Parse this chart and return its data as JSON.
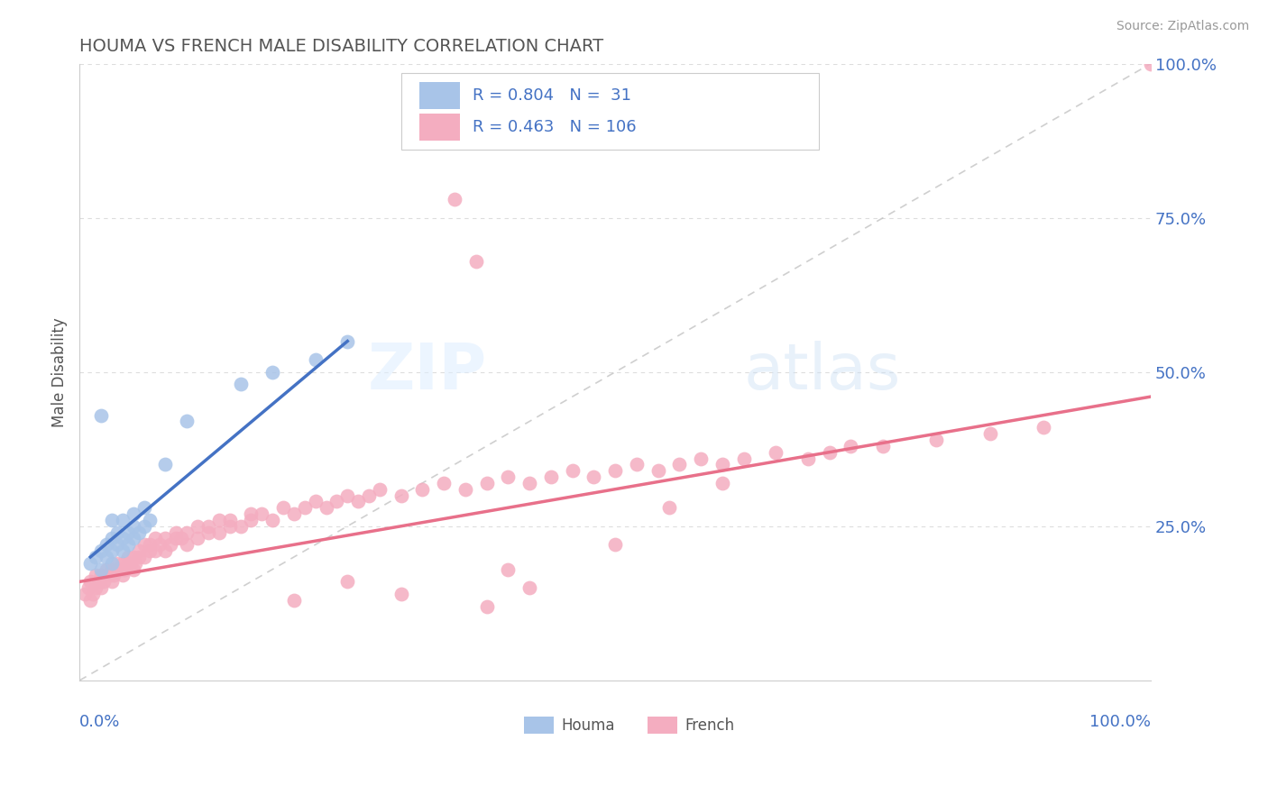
{
  "title": "HOUMA VS FRENCH MALE DISABILITY CORRELATION CHART",
  "source_text": "Source: ZipAtlas.com",
  "ylabel": "Male Disability",
  "houma_R": 0.804,
  "houma_N": 31,
  "french_R": 0.463,
  "french_N": 106,
  "houma_color": "#a8c4e8",
  "french_color": "#f4adc0",
  "houma_line_color": "#4472c4",
  "french_line_color": "#e8708a",
  "diag_line_color": "#bbbbbb",
  "legend_text_color": "#4472c4",
  "title_color": "#555555",
  "axis_label_color": "#4472c4",
  "background_color": "#ffffff",
  "grid_color": "#dddddd",
  "houma_scatter": {
    "x": [
      0.01,
      0.015,
      0.02,
      0.02,
      0.025,
      0.025,
      0.03,
      0.03,
      0.03,
      0.035,
      0.035,
      0.04,
      0.04,
      0.045,
      0.045,
      0.05,
      0.05,
      0.055,
      0.06,
      0.065,
      0.02,
      0.03,
      0.04,
      0.05,
      0.06,
      0.08,
      0.1,
      0.15,
      0.18,
      0.22,
      0.25
    ],
    "y": [
      0.19,
      0.2,
      0.18,
      0.21,
      0.2,
      0.22,
      0.19,
      0.21,
      0.23,
      0.22,
      0.24,
      0.21,
      0.23,
      0.22,
      0.24,
      0.23,
      0.25,
      0.24,
      0.25,
      0.26,
      0.43,
      0.26,
      0.26,
      0.27,
      0.28,
      0.35,
      0.42,
      0.48,
      0.5,
      0.52,
      0.55
    ]
  },
  "french_scatter": {
    "x": [
      0.005,
      0.008,
      0.01,
      0.01,
      0.012,
      0.015,
      0.015,
      0.018,
      0.02,
      0.02,
      0.022,
      0.025,
      0.025,
      0.028,
      0.03,
      0.03,
      0.032,
      0.035,
      0.035,
      0.038,
      0.04,
      0.04,
      0.042,
      0.045,
      0.045,
      0.048,
      0.05,
      0.05,
      0.052,
      0.055,
      0.055,
      0.06,
      0.06,
      0.065,
      0.065,
      0.07,
      0.07,
      0.075,
      0.08,
      0.08,
      0.085,
      0.09,
      0.09,
      0.095,
      0.1,
      0.1,
      0.11,
      0.11,
      0.12,
      0.12,
      0.13,
      0.13,
      0.14,
      0.14,
      0.15,
      0.16,
      0.16,
      0.17,
      0.18,
      0.19,
      0.2,
      0.21,
      0.22,
      0.23,
      0.24,
      0.25,
      0.26,
      0.27,
      0.28,
      0.3,
      0.32,
      0.34,
      0.36,
      0.38,
      0.4,
      0.42,
      0.44,
      0.46,
      0.48,
      0.5,
      0.52,
      0.54,
      0.56,
      0.58,
      0.6,
      0.62,
      0.65,
      0.68,
      0.7,
      0.72,
      0.35,
      0.37,
      0.75,
      0.8,
      0.85,
      0.9,
      1.0,
      0.3,
      0.4,
      0.5,
      0.2,
      0.25,
      0.55,
      0.6,
      0.38,
      0.42
    ],
    "y": [
      0.14,
      0.15,
      0.13,
      0.16,
      0.14,
      0.15,
      0.17,
      0.16,
      0.15,
      0.17,
      0.16,
      0.17,
      0.18,
      0.17,
      0.16,
      0.18,
      0.17,
      0.18,
      0.19,
      0.18,
      0.17,
      0.19,
      0.18,
      0.19,
      0.2,
      0.19,
      0.18,
      0.2,
      0.19,
      0.2,
      0.21,
      0.2,
      0.22,
      0.21,
      0.22,
      0.21,
      0.23,
      0.22,
      0.21,
      0.23,
      0.22,
      0.23,
      0.24,
      0.23,
      0.22,
      0.24,
      0.23,
      0.25,
      0.24,
      0.25,
      0.24,
      0.26,
      0.25,
      0.26,
      0.25,
      0.27,
      0.26,
      0.27,
      0.26,
      0.28,
      0.27,
      0.28,
      0.29,
      0.28,
      0.29,
      0.3,
      0.29,
      0.3,
      0.31,
      0.3,
      0.31,
      0.32,
      0.31,
      0.32,
      0.33,
      0.32,
      0.33,
      0.34,
      0.33,
      0.34,
      0.35,
      0.34,
      0.35,
      0.36,
      0.35,
      0.36,
      0.37,
      0.36,
      0.37,
      0.38,
      0.78,
      0.68,
      0.38,
      0.39,
      0.4,
      0.41,
      1.0,
      0.14,
      0.18,
      0.22,
      0.13,
      0.16,
      0.28,
      0.32,
      0.12,
      0.15
    ]
  },
  "houma_line": {
    "x0": 0.01,
    "x1": 0.25,
    "y0": 0.2,
    "y1": 0.55
  },
  "french_line": {
    "x0": 0.0,
    "x1": 1.0,
    "y0": 0.16,
    "y1": 0.46
  },
  "x_range": [
    0.0,
    1.0
  ],
  "y_range": [
    0.0,
    1.0
  ],
  "y_ticks": [
    0.25,
    0.5,
    0.75,
    1.0
  ],
  "y_tick_labels": [
    "25.0%",
    "50.0%",
    "75.0%",
    "100.0%"
  ]
}
